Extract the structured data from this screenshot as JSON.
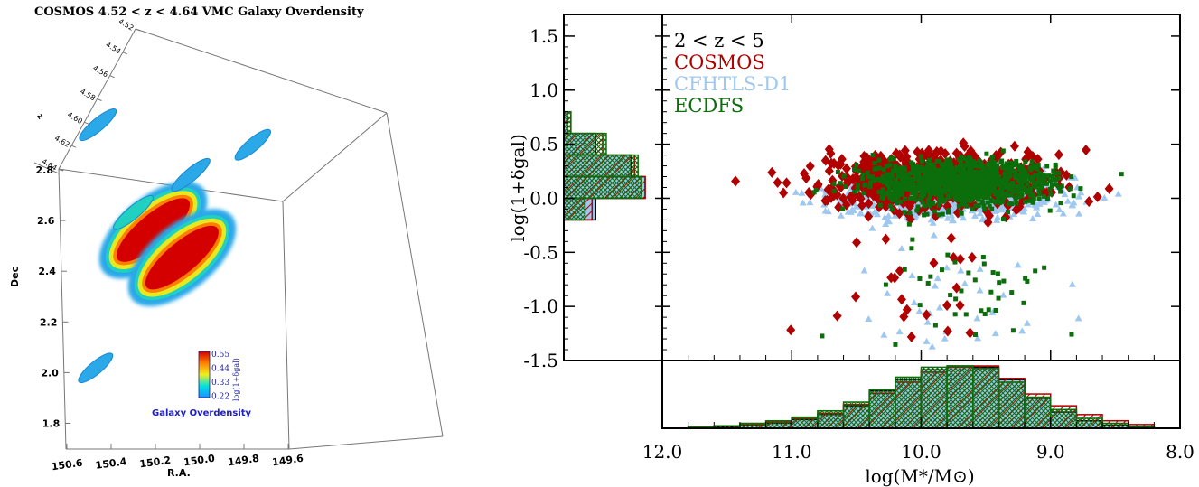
{
  "chart_data": [
    {
      "type": "3d-volume",
      "title": "COSMOS 4.52 < z < 4.64 VMC Galaxy Overdensity",
      "xlabel": "R.A.",
      "ylabel": "Dec",
      "zlabel": "z",
      "x_ticks": [
        "150.6",
        "150.4",
        "150.2",
        "150.0",
        "149.8",
        "149.6"
      ],
      "y_ticks": [
        "2.8",
        "2.6",
        "2.4",
        "2.2",
        "2.0",
        "1.8"
      ],
      "z_ticks": [
        "4.52",
        "4.54",
        "4.56",
        "4.58",
        "4.60",
        "4.62",
        "4.64"
      ],
      "colorbar": {
        "label": "log(1+δgal)",
        "ticks": [
          "0.55",
          "0.44",
          "0.33",
          "0.22"
        ],
        "range": [
          0.22,
          0.55
        ],
        "caption": "Galaxy Overdensity"
      },
      "structures": [
        {
          "ra": 150.21,
          "dec": 2.56,
          "peak": 0.55
        },
        {
          "ra": 150.08,
          "dec": 2.45,
          "peak": 0.53
        },
        {
          "ra": 150.3,
          "dec": 2.63,
          "peak": 0.3
        },
        {
          "ra": 150.04,
          "dec": 2.78,
          "peak": 0.26
        },
        {
          "ra": 150.46,
          "dec": 2.98,
          "peak": 0.25
        },
        {
          "ra": 149.76,
          "dec": 2.9,
          "peak": 0.24
        },
        {
          "ra": 150.47,
          "dec": 2.01,
          "peak": 0.22
        }
      ]
    },
    {
      "type": "scatter",
      "xlabel": "log(M*/M⊙)",
      "ylabel": "log(1+δgal)",
      "xlim": [
        12.0,
        8.0
      ],
      "ylim": [
        -1.5,
        1.7
      ],
      "x_ticks": [
        "12.0",
        "11.0",
        "10.0",
        "9.0",
        "8.0"
      ],
      "y_ticks": [
        "1.5",
        "1.0",
        "0.5",
        "0.0",
        "-0.5",
        "-1.0",
        "-1.5"
      ],
      "annotation": "2 < z < 5",
      "legend_position": "top-left",
      "series": [
        {
          "name": "COSMOS",
          "color": "#b00000",
          "marker": "diamond"
        },
        {
          "name": "CFHTLS-D1",
          "color": "#9ec8f0",
          "marker": "triangle"
        },
        {
          "name": "ECDFS",
          "color": "#0b6e0b",
          "marker": "square"
        }
      ],
      "density_hist": {
        "bins": [
          0.7,
          0.5,
          0.3,
          0.1,
          -0.1
        ],
        "COSMOS": [
          0.1,
          0.55,
          1.0,
          1.15,
          0.4
        ],
        "CFHTLS-D1": [
          0.05,
          0.45,
          0.95,
          1.15,
          0.45
        ],
        "ECDFS": [
          0.1,
          0.6,
          1.05,
          1.1,
          0.3
        ]
      },
      "mass_hist": {
        "bins": [
          11.9,
          11.7,
          11.5,
          11.3,
          11.1,
          10.9,
          10.7,
          10.5,
          10.3,
          10.1,
          9.9,
          9.7,
          9.5,
          9.3,
          9.1,
          8.9,
          8.7,
          8.5,
          8.3
        ],
        "COSMOS": [
          0.0,
          0.02,
          0.04,
          0.06,
          0.1,
          0.16,
          0.24,
          0.38,
          0.56,
          0.74,
          0.9,
          0.98,
          1.0,
          0.8,
          0.55,
          0.36,
          0.22,
          0.12,
          0.06
        ],
        "CFHTLS-D1": [
          0.0,
          0.01,
          0.02,
          0.04,
          0.08,
          0.14,
          0.22,
          0.36,
          0.6,
          0.78,
          0.94,
          1.0,
          0.98,
          0.78,
          0.48,
          0.26,
          0.12,
          0.05,
          0.02
        ],
        "ECDFS": [
          0.0,
          0.02,
          0.04,
          0.08,
          0.12,
          0.18,
          0.28,
          0.42,
          0.62,
          0.82,
          0.98,
          1.0,
          0.96,
          0.74,
          0.5,
          0.3,
          0.16,
          0.08,
          0.03
        ]
      }
    }
  ]
}
